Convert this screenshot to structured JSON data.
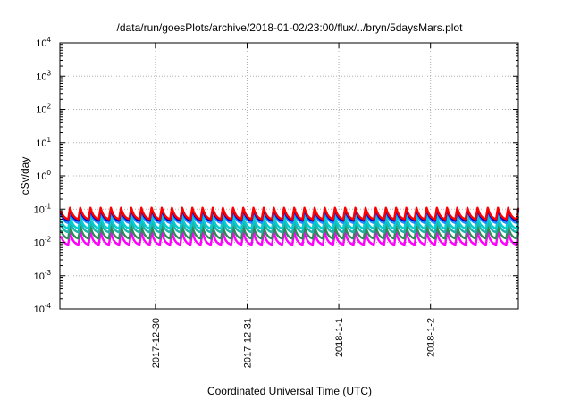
{
  "chart_data": {
    "type": "line",
    "title": "/data/run/goesPlots/archive/2018-01-02/23:00/flux/../bryn/5daysMars.plot",
    "xlabel": "Coordinated Universal Time (UTC)",
    "ylabel": "cSv/day",
    "y_scale": "log",
    "ylim": [
      0.0001,
      10000
    ],
    "y_ticks": [
      {
        "value": 0.0001,
        "base": "10",
        "exp": "-4"
      },
      {
        "value": 0.001,
        "base": "10",
        "exp": "-3"
      },
      {
        "value": 0.01,
        "base": "10",
        "exp": "-2"
      },
      {
        "value": 0.1,
        "base": "10",
        "exp": "-1"
      },
      {
        "value": 1,
        "base": "10",
        "exp": "0"
      },
      {
        "value": 10,
        "base": "10",
        "exp": "1"
      },
      {
        "value": 100,
        "base": "10",
        "exp": "2"
      },
      {
        "value": 1000,
        "base": "10",
        "exp": "3"
      },
      {
        "value": 10000,
        "base": "10",
        "exp": "4"
      }
    ],
    "xlim": [
      "2017-12-28T23:00",
      "2018-01-02T23:00"
    ],
    "x_ticks": [
      {
        "value": "2017-12-30T00:00",
        "label": "2017-12-30"
      },
      {
        "value": "2017-12-31T00:00",
        "label": "2017-12-31"
      },
      {
        "value": "2018-01-01T00:00",
        "label": "2018-1-1"
      },
      {
        "value": "2018-01-02T00:00",
        "label": "2018-1-2"
      }
    ],
    "grid": true,
    "pattern": {
      "cycles": 45,
      "shape": "sawtooth"
    },
    "series": [
      {
        "color": "#ff00ff",
        "peak": 0.02,
        "trough": 0.0085
      },
      {
        "color": "#2e8b57",
        "peak": 0.03,
        "trough": 0.013
      },
      {
        "color": "#20b2aa",
        "peak": 0.045,
        "trough": 0.02
      },
      {
        "color": "#00ced1",
        "peak": 0.06,
        "trough": 0.026
      },
      {
        "color": "#1e90ff",
        "peak": 0.09,
        "trough": 0.038
      },
      {
        "color": "#0000cd",
        "peak": 0.1,
        "trough": 0.045
      },
      {
        "color": "#ff0000",
        "peak": 0.11,
        "trough": 0.05
      }
    ]
  }
}
